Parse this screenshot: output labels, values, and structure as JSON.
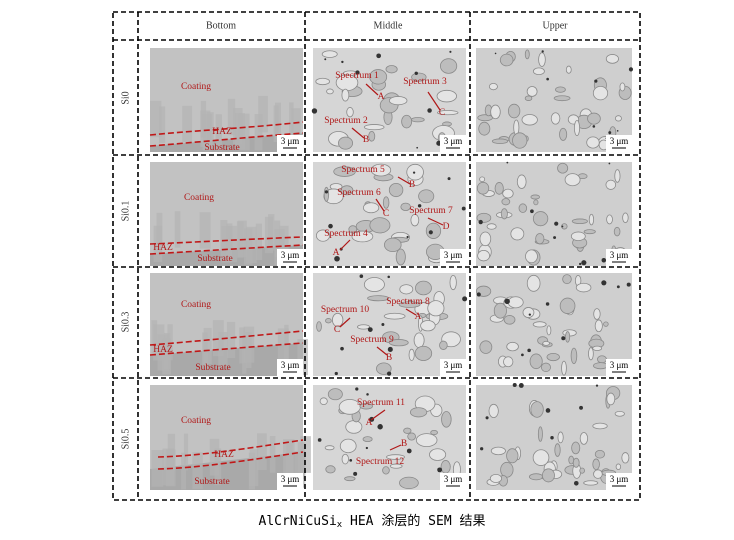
{
  "columns": [
    "Bottom",
    "Middle",
    "Upper"
  ],
  "rows": [
    {
      "label": "Si0",
      "bottom": [
        "Coating",
        "HAZ",
        "Substrate"
      ],
      "middle": [
        "Spectrum 1",
        "A",
        "Spectrum 3",
        "C",
        "Spectrum 2",
        "B"
      ]
    },
    {
      "label": "Si0.1",
      "bottom": [
        "Coating",
        "HAZ",
        "Substrate"
      ],
      "middle": [
        "Spectrum 5",
        "B",
        "Spectrum 6",
        "C",
        "Spectrum 7",
        "D",
        "Spectrum 4",
        "A"
      ]
    },
    {
      "label": "Si0.3",
      "bottom": [
        "Coating",
        "HAZ",
        "Substrate"
      ],
      "middle": [
        "Spectrum 8",
        "A",
        "Spectrum 10",
        "C",
        "Spectrum 9",
        "B"
      ]
    },
    {
      "label": "Si0.5",
      "bottom": [
        "Coating",
        "HAZ",
        "Substrate"
      ],
      "middle": [
        "Spectrum 11",
        "A",
        "B",
        "Spectrum 12"
      ]
    }
  ],
  "scale_bar": "3 μm",
  "caption": {
    "main": "AlCrNiCuSi",
    "subscript": "x",
    "rest": " HEA 涂层的 SEM 结果"
  }
}
